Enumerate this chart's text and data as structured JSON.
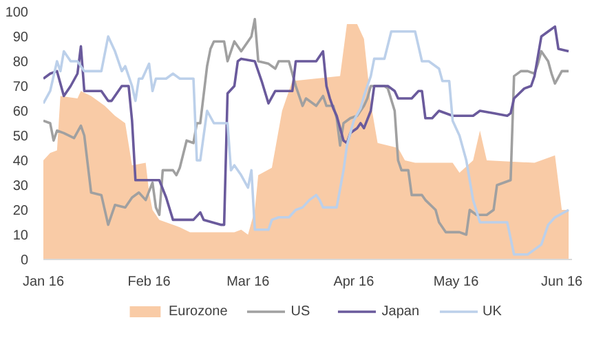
{
  "chart_data": {
    "type": "line",
    "xlim": [
      "2016-01-01",
      "2016-06-04"
    ],
    "xticks": [
      {
        "value": "2016-01-01",
        "label": "Jan 16"
      },
      {
        "value": "2016-02-01",
        "label": "Feb 16"
      },
      {
        "value": "2016-03-01",
        "label": "Mar 16"
      },
      {
        "value": "2016-04-01",
        "label": "Apr 16"
      },
      {
        "value": "2016-05-01",
        "label": "May 16"
      },
      {
        "value": "2016-06-01",
        "label": "Jun 16"
      }
    ],
    "ylim": [
      0,
      100
    ],
    "yticks": [
      0,
      10,
      20,
      30,
      40,
      50,
      60,
      70,
      80,
      90,
      100
    ],
    "grid": false,
    "legend": "bottom",
    "series": [
      {
        "name": "Eurozone",
        "type": "area",
        "color": "#f9cba6",
        "x": [
          "2016-01-01",
          "2016-01-03",
          "2016-01-05",
          "2016-01-06",
          "2016-01-11",
          "2016-01-12",
          "2016-01-15",
          "2016-01-19",
          "2016-01-22",
          "2016-01-25",
          "2016-01-27",
          "2016-01-31",
          "2016-02-01",
          "2016-02-02",
          "2016-02-04",
          "2016-02-10",
          "2016-02-13",
          "2016-02-26",
          "2016-02-28",
          "2016-03-01",
          "2016-03-03",
          "2016-03-04",
          "2016-03-08",
          "2016-03-11",
          "2016-03-14",
          "2016-03-28",
          "2016-03-30",
          "2016-04-02",
          "2016-04-04",
          "2016-04-06",
          "2016-04-08",
          "2016-04-14",
          "2016-04-16",
          "2016-04-19",
          "2016-04-30",
          "2016-05-02",
          "2016-05-06",
          "2016-05-08",
          "2016-05-10",
          "2016-05-24",
          "2016-05-30",
          "2016-06-01",
          "2016-06-03"
        ],
        "values": [
          40,
          43,
          44,
          66,
          65,
          68,
          66,
          62,
          58,
          55,
          38,
          39,
          27,
          20,
          16,
          13,
          11,
          11,
          12,
          10,
          20,
          34,
          37,
          60,
          72,
          74,
          95,
          95,
          89,
          63,
          47,
          45,
          40,
          39,
          39,
          35,
          40,
          52,
          40,
          39,
          42,
          20,
          20
        ]
      },
      {
        "name": "US",
        "color": "#a0a0a0",
        "x": [
          "2016-01-01",
          "2016-01-03",
          "2016-01-04",
          "2016-01-05",
          "2016-01-07",
          "2016-01-10",
          "2016-01-12",
          "2016-01-13",
          "2016-01-15",
          "2016-01-18",
          "2016-01-20",
          "2016-01-22",
          "2016-01-25",
          "2016-01-27",
          "2016-01-29",
          "2016-01-31",
          "2016-02-02",
          "2016-02-03",
          "2016-02-04",
          "2016-02-05",
          "2016-02-08",
          "2016-02-09",
          "2016-02-10",
          "2016-02-12",
          "2016-02-14",
          "2016-02-15",
          "2016-02-16",
          "2016-02-18",
          "2016-02-19",
          "2016-02-20",
          "2016-02-23",
          "2016-02-24",
          "2016-02-26",
          "2016-02-28",
          "2016-03-01",
          "2016-03-02",
          "2016-03-03",
          "2016-03-04",
          "2016-03-07",
          "2016-03-09",
          "2016-03-10",
          "2016-03-13",
          "2016-03-15",
          "2016-03-17",
          "2016-03-18",
          "2016-03-21",
          "2016-03-23",
          "2016-03-24",
          "2016-03-26",
          "2016-03-27",
          "2016-03-28",
          "2016-03-29",
          "2016-03-31",
          "2016-04-02",
          "2016-04-04",
          "2016-04-05",
          "2016-04-06",
          "2016-04-10",
          "2016-04-11",
          "2016-04-13",
          "2016-04-14",
          "2016-04-15",
          "2016-04-17",
          "2016-04-18",
          "2016-04-21",
          "2016-04-22",
          "2016-04-25",
          "2016-04-26",
          "2016-04-28",
          "2016-05-02",
          "2016-05-04",
          "2016-05-05",
          "2016-05-07",
          "2016-05-10",
          "2016-05-12",
          "2016-05-13",
          "2016-05-17",
          "2016-05-18",
          "2016-05-20",
          "2016-05-22",
          "2016-05-24",
          "2016-05-25",
          "2016-05-26",
          "2016-05-28",
          "2016-05-29",
          "2016-05-30",
          "2016-06-01",
          "2016-06-03"
        ],
        "values": [
          56,
          55,
          48,
          52,
          51,
          49,
          54,
          50,
          27,
          26,
          14,
          22,
          21,
          25,
          27,
          24,
          31,
          21,
          18,
          36,
          36,
          34,
          37,
          48,
          47,
          55,
          55,
          78,
          85,
          88,
          88,
          80,
          88,
          84,
          88,
          90,
          97,
          80,
          79,
          77,
          80,
          80,
          70,
          62,
          65,
          62,
          66,
          62,
          62,
          57,
          46,
          55,
          57,
          58,
          62,
          65,
          70,
          70,
          69,
          60,
          40,
          36,
          36,
          26,
          26,
          24,
          20,
          15,
          11,
          11,
          10,
          20,
          18,
          18,
          20,
          30,
          32,
          74,
          76,
          76,
          75,
          79,
          84,
          80,
          75,
          71,
          76,
          76
        ]
      },
      {
        "name": "Japan",
        "color": "#6a5a9c",
        "x": [
          "2016-01-01",
          "2016-01-03",
          "2016-01-05",
          "2016-01-07",
          "2016-01-09",
          "2016-01-11",
          "2016-01-12",
          "2016-01-13",
          "2016-01-18",
          "2016-01-20",
          "2016-01-21",
          "2016-01-24",
          "2016-01-26",
          "2016-01-27",
          "2016-01-28",
          "2016-02-04",
          "2016-02-06",
          "2016-02-08",
          "2016-02-14",
          "2016-02-16",
          "2016-02-17",
          "2016-02-22",
          "2016-02-23",
          "2016-02-24",
          "2016-02-26",
          "2016-02-27",
          "2016-02-28",
          "2016-03-03",
          "2016-03-05",
          "2016-03-07",
          "2016-03-09",
          "2016-03-14",
          "2016-03-15",
          "2016-03-21",
          "2016-03-23",
          "2016-03-24",
          "2016-03-25",
          "2016-03-26",
          "2016-03-27",
          "2016-03-29",
          "2016-03-30",
          "2016-03-31",
          "2016-04-02",
          "2016-04-03",
          "2016-04-04",
          "2016-04-06",
          "2016-04-07",
          "2016-04-11",
          "2016-04-13",
          "2016-04-14",
          "2016-04-18",
          "2016-04-20",
          "2016-04-21",
          "2016-04-22",
          "2016-04-24",
          "2016-04-26",
          "2016-04-30",
          "2016-05-06",
          "2016-05-08",
          "2016-05-12",
          "2016-05-16",
          "2016-05-17",
          "2016-05-18",
          "2016-05-21",
          "2016-05-23",
          "2016-05-24",
          "2016-05-26",
          "2016-05-28",
          "2016-05-30",
          "2016-05-31",
          "2016-06-03"
        ],
        "values": [
          73,
          75,
          76,
          66,
          70,
          75,
          86,
          68,
          68,
          64,
          64,
          70,
          70,
          56,
          32,
          32,
          25,
          16,
          16,
          19,
          16,
          14,
          14,
          67,
          70,
          80,
          81,
          80,
          72,
          63,
          68,
          68,
          80,
          80,
          84,
          70,
          65,
          61,
          58,
          48,
          47,
          51,
          53,
          55,
          53,
          60,
          70,
          70,
          68,
          65,
          65,
          68,
          68,
          57,
          57,
          60,
          58,
          58,
          60,
          59,
          58,
          59,
          65,
          69,
          70,
          74,
          90,
          92,
          94,
          85,
          84
        ]
      },
      {
        "name": "UK",
        "color": "#bcd0ea",
        "x": [
          "2016-01-01",
          "2016-01-03",
          "2016-01-05",
          "2016-01-06",
          "2016-01-07",
          "2016-01-09",
          "2016-01-11",
          "2016-01-13",
          "2016-01-18",
          "2016-01-20",
          "2016-01-22",
          "2016-01-24",
          "2016-01-25",
          "2016-01-27",
          "2016-01-28",
          "2016-01-29",
          "2016-01-30",
          "2016-02-01",
          "2016-02-02",
          "2016-02-03",
          "2016-02-06",
          "2016-02-08",
          "2016-02-10",
          "2016-02-14",
          "2016-02-15",
          "2016-02-16",
          "2016-02-18",
          "2016-02-20",
          "2016-02-24",
          "2016-02-25",
          "2016-02-26",
          "2016-02-28",
          "2016-03-01",
          "2016-03-02",
          "2016-03-03",
          "2016-03-07",
          "2016-03-08",
          "2016-03-10",
          "2016-03-13",
          "2016-03-15",
          "2016-03-17",
          "2016-03-19",
          "2016-03-21",
          "2016-03-22",
          "2016-03-23",
          "2016-03-27",
          "2016-03-29",
          "2016-03-30",
          "2016-04-01",
          "2016-04-03",
          "2016-04-04",
          "2016-04-06",
          "2016-04-07",
          "2016-04-10",
          "2016-04-12",
          "2016-04-19",
          "2016-04-21",
          "2016-04-23",
          "2016-04-26",
          "2016-04-27",
          "2016-04-29",
          "2016-04-30",
          "2016-05-02",
          "2016-05-04",
          "2016-05-06",
          "2016-05-08",
          "2016-05-11",
          "2016-05-16",
          "2016-05-18",
          "2016-05-22",
          "2016-05-26",
          "2016-05-28",
          "2016-05-30",
          "2016-06-03"
        ],
        "values": [
          63,
          68,
          80,
          76,
          84,
          80,
          80,
          76,
          76,
          90,
          84,
          76,
          78,
          70,
          64,
          73,
          73,
          79,
          68,
          73,
          73,
          75,
          73,
          73,
          40,
          40,
          60,
          55,
          55,
          36,
          38,
          34,
          29,
          36,
          12,
          12,
          16,
          17,
          17,
          20,
          21,
          24,
          26,
          24,
          21,
          21,
          36,
          46,
          56,
          61,
          66,
          74,
          81,
          81,
          92,
          92,
          80,
          80,
          77,
          72,
          72,
          56,
          50,
          40,
          24,
          15,
          15,
          15,
          2,
          2,
          6,
          14,
          17,
          20
        ]
      }
    ]
  }
}
